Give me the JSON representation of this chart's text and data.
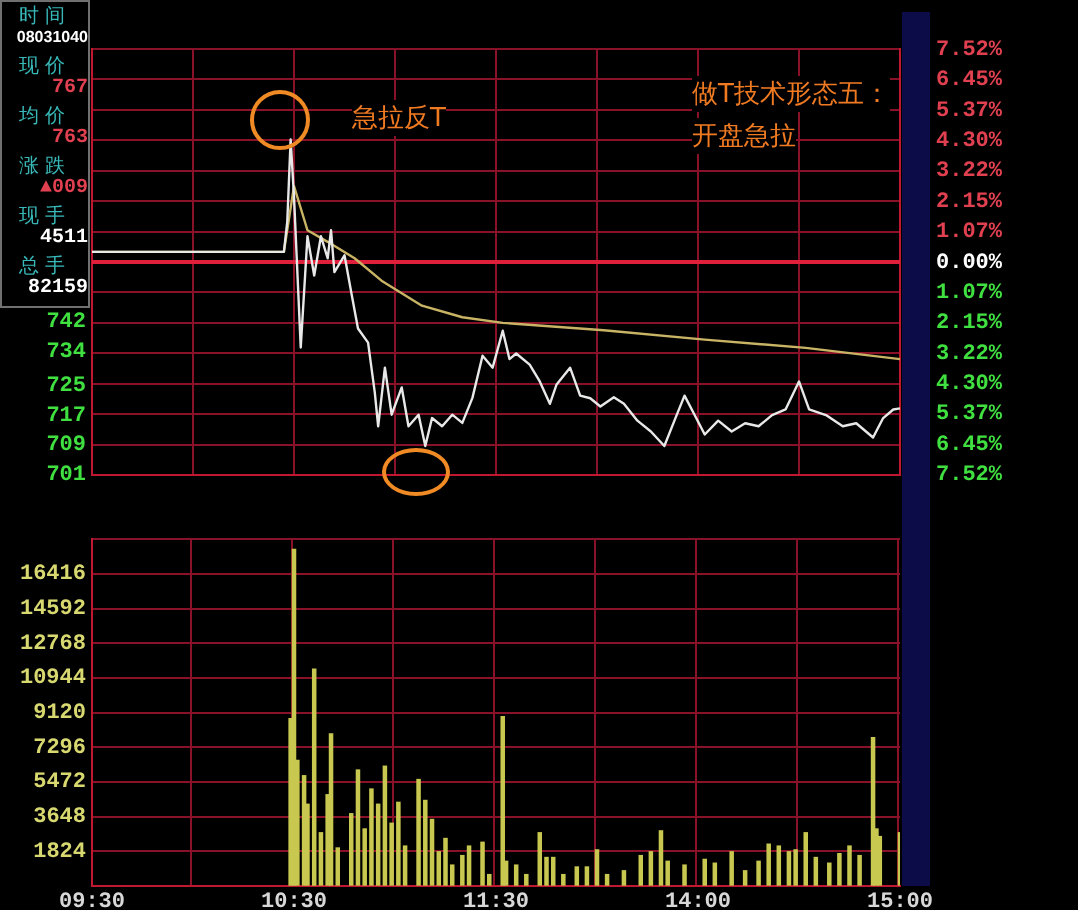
{
  "chart_data": [
    {
      "type": "other",
      "annotations": [
        "时间",
        "08031040",
        "现价",
        "767",
        "均价",
        "763",
        "涨跌",
        "▲009",
        "现手",
        "4511",
        "总手",
        "82159"
      ]
    },
    {
      "type": "line",
      "annotations": [
        "急拉反T",
        "做T技术形态五：",
        "开盘急拉"
      ],
      "categories": [
        null,
        null,
        null,
        null,
        null,
        null,
        null,
        null,
        null,
        null,
        null,
        null,
        null,
        null,
        null,
        null,
        null,
        null,
        null,
        null,
        null,
        null,
        null,
        null,
        null,
        null,
        null,
        null,
        null,
        null,
        null,
        null,
        null,
        null,
        null,
        null,
        null,
        null,
        null,
        null,
        null,
        null,
        null,
        null,
        null,
        null,
        null,
        null,
        null,
        null,
        null,
        null,
        null,
        null,
        null,
        null,
        null,
        null,
        null,
        null,
        null,
        null,
        null,
        null,
        null,
        null,
        null,
        null,
        null,
        null,
        null,
        null,
        null,
        null,
        null,
        null,
        null,
        null,
        null,
        null,
        null,
        null,
        null,
        null,
        null,
        null,
        null,
        null,
        null,
        null,
        null,
        null,
        null,
        null,
        null,
        null,
        null,
        null,
        null,
        null,
        null,
        null,
        null,
        null,
        null,
        null,
        null,
        null,
        null,
        null,
        null,
        null,
        null,
        null,
        null,
        null,
        null,
        null,
        null,
        null,
        null,
        null,
        null,
        null,
        null,
        null,
        null,
        null,
        null,
        null,
        null,
        null,
        null,
        null,
        null,
        null,
        null,
        null,
        null,
        null,
        null,
        null,
        null,
        null,
        null,
        null,
        null,
        null,
        null,
        null,
        null,
        null,
        null,
        null,
        null,
        null,
        null,
        null,
        null,
        null,
        null,
        null,
        null,
        null,
        null,
        null,
        null,
        null,
        null,
        null,
        null,
        null,
        null,
        null,
        null,
        null,
        null,
        null,
        null,
        null,
        null,
        null,
        null,
        null,
        null,
        null,
        null,
        null,
        null,
        null,
        null,
        null,
        null,
        null,
        null,
        null,
        null,
        null,
        null,
        null,
        null,
        null,
        null,
        null,
        null,
        null,
        null,
        null,
        null,
        null,
        null,
        null,
        null,
        null,
        null,
        null,
        null,
        null,
        null,
        null,
        null,
        null,
        null,
        null,
        null,
        null,
        null,
        null,
        null,
        null,
        null,
        null,
        null,
        null,
        null,
        null,
        null,
        null,
        null,
        null,
        null
      ],
      "ylim": [
        701,
        815
      ],
      "yticks": [
        701,
        709,
        717,
        725,
        734,
        742
      ],
      "y2lim": [
        -7.52,
        7.52
      ],
      "y2ticks": [
        {
          "value": -7.52,
          "label": "7.52%"
        },
        {
          "value": -6.45,
          "label": "6.45%"
        },
        {
          "value": -5.37,
          "label": "5.37%"
        },
        {
          "value": -4.3,
          "label": "4.30%"
        },
        {
          "value": -3.22,
          "label": "3.22%"
        },
        {
          "value": -2.15,
          "label": "2.15%"
        },
        {
          "value": -1.07,
          "label": "1.07%"
        },
        {
          "value": 0,
          "label": "0.00%"
        },
        {
          "value": 1.07,
          "label": "1.07%"
        },
        {
          "value": 2.15,
          "label": "2.15%"
        },
        {
          "value": 3.22,
          "label": "3.22%"
        },
        {
          "value": 4.3,
          "label": "4.30%"
        },
        {
          "value": 5.37,
          "label": "5.37%"
        },
        {
          "value": 6.45,
          "label": "6.45%"
        },
        {
          "value": 7.52,
          "label": "7.52%"
        }
      ],
      "ref_lines": [
        {
          "axis": "y2",
          "value": 0,
          "color": "#e0203a"
        }
      ],
      "grid": true,
      "tick_labels": "y",
      "marker": "none",
      "line_style": "solid",
      "series": [
        {
          "color": "#e8e8e8",
          "values": [
            760.7,
            null,
            null,
            null,
            null,
            null,
            null,
            null,
            null,
            null,
            null,
            null,
            null,
            null,
            null,
            null,
            null,
            null,
            null,
            null,
            null,
            null,
            null,
            null,
            null,
            null,
            null,
            null,
            null,
            null,
            null,
            null,
            null,
            null,
            null,
            null,
            null,
            null,
            null,
            null,
            null,
            null,
            null,
            null,
            null,
            null,
            null,
            null,
            null,
            null,
            null,
            null,
            null,
            null,
            null,
            null,
            null,
            760.7,
            768.8,
            790.8,
            775.5,
            null,
            735.1,
            null,
            764.9,
            null,
            754.4,
            null,
            764.9,
            null,
            759,
            766.5,
            755.3,
            null,
            null,
            759.8,
            null,
            749.9,
            null,
            740.2,
            null,
            null,
            736.4,
            null,
            723,
            714,
            null,
            729.7,
            null,
            717.1,
            null,
            null,
            724.4,
            null,
            714,
            null,
            null,
            717.1,
            null,
            708.7,
            null,
            716.2,
            null,
            null,
            714,
            null,
            null,
            717.1,
            null,
            null,
            714.9,
            null,
            null,
            721.6,
            null,
            null,
            732.9,
            null,
            null,
            729.7,
            null,
            null,
            739.6,
            null,
            732,
            null,
            733.5,
            null,
            null,
            null,
            730.5,
            null,
            null,
            726,
            null,
            null,
            720,
            null,
            725.2,
            null,
            null,
            null,
            729.7,
            null,
            null,
            722.2,
            null,
            null,
            721.5,
            null,
            null,
            719.3,
            null,
            null,
            null,
            721.8,
            null,
            null,
            720,
            null,
            null,
            null,
            715.5,
            null,
            null,
            null,
            712.6,
            null,
            null,
            null,
            708.7,
            null,
            null,
            715.5,
            null,
            null,
            722.2,
            null,
            null,
            717,
            null,
            null,
            711.8,
            null,
            null,
            null,
            715.5,
            null,
            null,
            null,
            712.6,
            null,
            null,
            null,
            714.8,
            null,
            null,
            null,
            714,
            null,
            null,
            null,
            717,
            null,
            null,
            null,
            718.5,
            null,
            null,
            null,
            726,
            null,
            null,
            718.5,
            null,
            null,
            null,
            null,
            717,
            null,
            null,
            null,
            null,
            714,
            null,
            null,
            null,
            714.8,
            null,
            null,
            null,
            null,
            711,
            null,
            null,
            716.2,
            null,
            null,
            718.5,
            null,
            718.8
          ]
        },
        {
          "color": "#c8b464",
          "values": [
            760.7,
            null,
            null,
            null,
            null,
            null,
            null,
            null,
            null,
            null,
            null,
            null,
            null,
            null,
            null,
            null,
            null,
            null,
            null,
            null,
            null,
            null,
            null,
            null,
            null,
            null,
            null,
            null,
            null,
            null,
            null,
            null,
            null,
            null,
            null,
            null,
            null,
            null,
            null,
            null,
            null,
            null,
            null,
            null,
            null,
            null,
            null,
            null,
            null,
            null,
            null,
            null,
            null,
            null,
            null,
            null,
            null,
            760.7,
            null,
            null,
            778.3,
            null,
            null,
            null,
            766.5,
            null,
            null,
            null,
            null,
            null,
            763.4,
            null,
            null,
            null,
            null,
            null,
            null,
            null,
            759,
            null,
            null,
            null,
            null,
            null,
            null,
            null,
            753,
            null,
            null,
            null,
            null,
            null,
            null,
            null,
            null,
            null,
            null,
            null,
            746.3,
            null,
            null,
            null,
            null,
            null,
            null,
            null,
            null,
            null,
            null,
            null,
            743.2,
            null,
            null,
            null,
            null,
            null,
            null,
            null,
            null,
            null,
            null,
            null,
            741.7,
            null,
            null,
            null,
            null,
            null,
            null,
            null,
            null,
            null,
            null,
            null,
            null,
            null,
            null,
            null,
            null,
            null,
            null,
            null,
            null,
            null,
            null,
            null,
            null,
            null,
            null,
            null,
            null,
            null,
            739.7,
            null,
            null,
            null,
            null,
            null,
            null,
            null,
            null,
            null,
            null,
            null,
            null,
            null,
            null,
            null,
            null,
            null,
            null,
            null,
            null,
            null,
            null,
            null,
            null,
            null,
            null,
            null,
            null,
            null,
            737.2,
            null,
            null,
            null,
            null,
            null,
            null,
            null,
            null,
            null,
            null,
            null,
            null,
            null,
            null,
            null,
            null,
            null,
            null,
            null,
            null,
            null,
            null,
            null,
            null,
            null,
            null,
            null,
            null,
            null,
            735,
            null,
            null,
            null,
            null,
            null,
            null,
            null,
            null,
            null,
            null,
            null,
            null,
            null,
            null,
            null,
            null,
            null,
            null,
            null,
            null,
            null,
            null,
            null,
            null,
            null,
            null,
            null,
            732
          ]
        }
      ]
    },
    {
      "type": "bar",
      "categories": [
        "09:30",
        null,
        null,
        null,
        null,
        null,
        null,
        null,
        null,
        null,
        null,
        null,
        null,
        null,
        null,
        null,
        null,
        null,
        null,
        null,
        null,
        null,
        null,
        null,
        null,
        null,
        null,
        null,
        null,
        null,
        null,
        null,
        null,
        null,
        null,
        null,
        null,
        null,
        null,
        null,
        null,
        null,
        null,
        null,
        null,
        null,
        null,
        null,
        null,
        null,
        null,
        null,
        null,
        null,
        null,
        null,
        null,
        null,
        null,
        null,
        "10:30",
        null,
        null,
        null,
        null,
        null,
        null,
        null,
        null,
        null,
        null,
        null,
        null,
        null,
        null,
        null,
        null,
        null,
        null,
        null,
        null,
        null,
        null,
        null,
        null,
        null,
        null,
        null,
        null,
        null,
        null,
        null,
        null,
        null,
        null,
        null,
        null,
        null,
        null,
        null,
        null,
        null,
        null,
        null,
        null,
        null,
        null,
        null,
        null,
        null,
        null,
        null,
        null,
        null,
        null,
        null,
        null,
        null,
        null,
        null,
        "11:30",
        null,
        null,
        null,
        null,
        null,
        null,
        null,
        null,
        null,
        null,
        null,
        null,
        null,
        null,
        null,
        null,
        null,
        null,
        null,
        null,
        null,
        null,
        null,
        null,
        null,
        null,
        null,
        null,
        null,
        null,
        null,
        null,
        null,
        null,
        null,
        null,
        null,
        null,
        null,
        null,
        null,
        null,
        null,
        null,
        null,
        null,
        null,
        null,
        null,
        null,
        null,
        null,
        null,
        null,
        null,
        null,
        null,
        null,
        null,
        "14:00",
        null,
        null,
        null,
        null,
        null,
        null,
        null,
        null,
        null,
        null,
        null,
        null,
        null,
        null,
        null,
        null,
        null,
        null,
        null,
        null,
        null,
        null,
        null,
        null,
        null,
        null,
        null,
        null,
        null,
        null,
        null,
        null,
        null,
        null,
        null,
        null,
        null,
        null,
        null,
        null,
        null,
        null,
        null,
        null,
        null,
        null,
        null,
        null,
        null,
        null,
        null,
        null,
        null,
        null,
        null,
        null,
        null,
        null,
        null,
        "15:00"
      ],
      "ylim": [
        0,
        18240
      ],
      "yticks": [
        {
          "value": 0,
          "label": null
        },
        1824,
        3648,
        5472,
        7296,
        9120,
        10944,
        12768,
        14592,
        16416,
        {
          "value": 18240,
          "label": null
        }
      ],
      "grid": true,
      "series": [
        {
          "color": "#c8c850",
          "values": [
            null,
            null,
            null,
            null,
            null,
            null,
            null,
            null,
            null,
            null,
            null,
            null,
            null,
            null,
            null,
            null,
            null,
            null,
            null,
            null,
            null,
            null,
            null,
            null,
            null,
            null,
            null,
            null,
            null,
            null,
            null,
            null,
            null,
            null,
            null,
            null,
            null,
            null,
            null,
            null,
            null,
            null,
            null,
            null,
            null,
            null,
            null,
            null,
            null,
            null,
            null,
            null,
            null,
            null,
            null,
            null,
            null,
            null,
            null,
            8800,
            17700,
            6600,
            null,
            5800,
            4300,
            null,
            11400,
            null,
            2800,
            null,
            4800,
            8000,
            null,
            2000,
            null,
            null,
            null,
            3800,
            null,
            6100,
            null,
            3000,
            null,
            5100,
            null,
            4300,
            null,
            6300,
            null,
            3300,
            null,
            4400,
            null,
            2100,
            null,
            null,
            null,
            5600,
            null,
            4500,
            null,
            3500,
            null,
            1800,
            null,
            2500,
            null,
            1100,
            null,
            null,
            1600,
            null,
            2100,
            null,
            null,
            null,
            2300,
            null,
            600,
            null,
            null,
            null,
            8900,
            1300,
            null,
            null,
            1100,
            null,
            null,
            600,
            null,
            null,
            null,
            2800,
            null,
            1500,
            null,
            1500,
            null,
            null,
            600,
            null,
            null,
            null,
            1000,
            null,
            null,
            1000,
            null,
            null,
            1900,
            null,
            null,
            600,
            null,
            null,
            null,
            null,
            800,
            null,
            null,
            null,
            null,
            1600,
            null,
            null,
            1800,
            null,
            null,
            2900,
            null,
            1300,
            null,
            null,
            null,
            null,
            1100,
            null,
            null,
            null,
            null,
            null,
            1400,
            null,
            null,
            1200,
            null,
            null,
            null,
            null,
            1800,
            null,
            null,
            null,
            800,
            null,
            null,
            null,
            1300,
            null,
            null,
            2200,
            null,
            null,
            2100,
            null,
            null,
            1800,
            null,
            1900,
            null,
            null,
            2800,
            null,
            null,
            1500,
            null,
            null,
            null,
            1200,
            null,
            null,
            1700,
            null,
            null,
            2100,
            null,
            null,
            1600,
            null,
            null,
            null,
            7800,
            3000,
            2600,
            null,
            null,
            null,
            null,
            null,
            2800
          ]
        }
      ]
    }
  ]
}
